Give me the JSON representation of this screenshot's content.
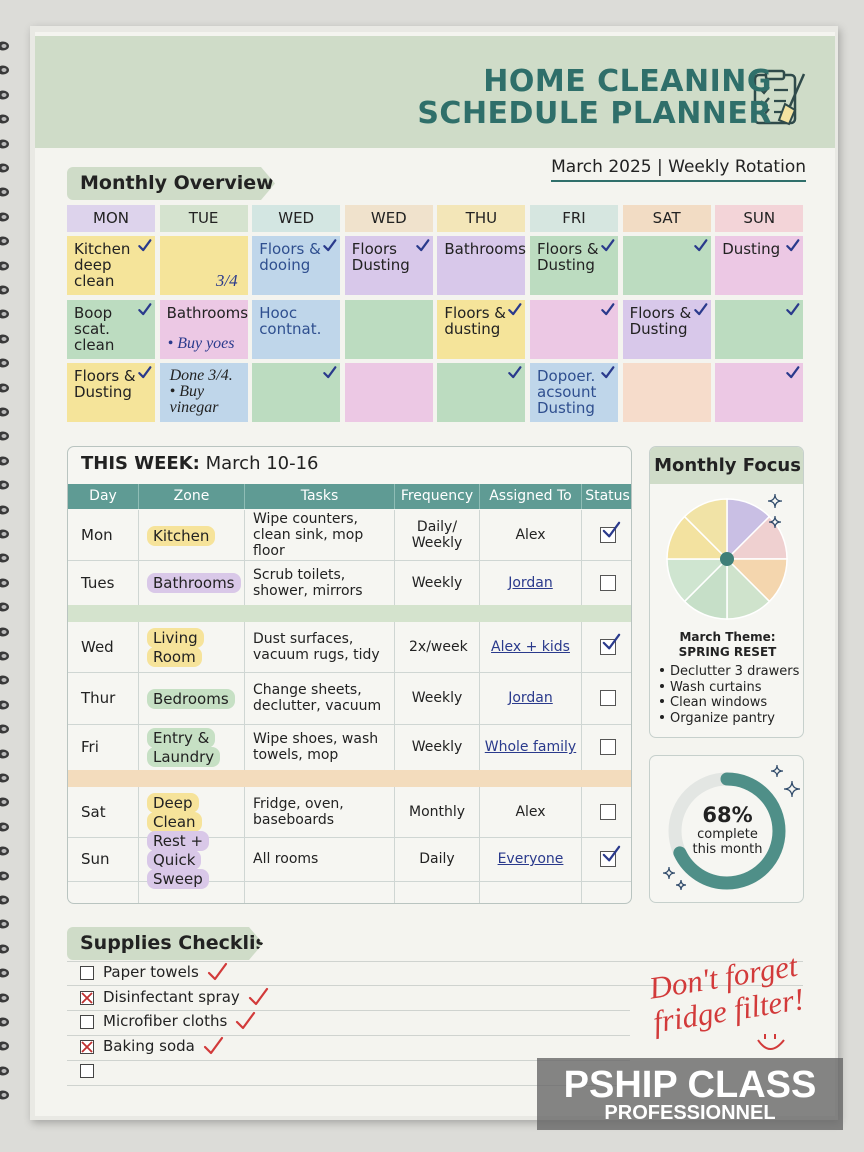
{
  "header": {
    "title": [
      "HOME CLEANING",
      "SCHEDULE PLANNER"
    ],
    "subtitle": "March 2025 | Weekly Rotation"
  },
  "monthly_overview": {
    "title": "Monthly Overview",
    "days": [
      {
        "label": "MON",
        "color": "#ddd3ec"
      },
      {
        "label": "TUE",
        "color": "#d5e3cf"
      },
      {
        "label": "WED",
        "color": "#d3e6e2"
      },
      {
        "label": "WED",
        "color": "#f0e2cc"
      },
      {
        "label": "THU",
        "color": "#f3e6b8"
      },
      {
        "label": "FRI",
        "color": "#d6e6e0"
      },
      {
        "label": "SAT",
        "color": "#f2dcc4"
      },
      {
        "label": "SUN",
        "color": "#f3d4d8"
      }
    ],
    "rows": [
      [
        {
          "text": "Kitchen deep clean",
          "color": "#f5e49a",
          "check": true
        },
        {
          "note": "3/4",
          "color": "#f5e49a",
          "check": false
        },
        {
          "text": "Floors & dooing",
          "color": "#bfd6ea",
          "check": true,
          "ink": "#2f4f8f"
        },
        {
          "text": "Floors Dusting",
          "color": "#d8c8ea",
          "check": true
        },
        {
          "text": "Bathrooms",
          "color": "#d8c8ea",
          "check": false
        },
        {
          "text": "Floors & Dusting",
          "color": "#bcdcc0",
          "check": true
        },
        {
          "color": "#bcdcc0",
          "check": true
        },
        {
          "text": "Dusting",
          "color": "#ecc8e4",
          "check": true
        }
      ],
      [
        {
          "text": "Boop scat. clean",
          "color": "#bcdcc0",
          "check": true
        },
        {
          "text": "Bathrooms",
          "note": "• Buy yoes",
          "color": "#ecc8e4",
          "check": false
        },
        {
          "text": "Hooc contnat.",
          "color": "#bfd6ea",
          "check": false,
          "ink": "#2f4f8f"
        },
        {
          "color": "#bcdcc0",
          "check": false
        },
        {
          "text": "Floors & dusting",
          "color": "#f5e49a",
          "check": true
        },
        {
          "color": "#ecc8e4",
          "check": true
        },
        {
          "text": "Floors & Dusting",
          "color": "#d8c8ea",
          "check": true
        },
        {
          "color": "#bcdcc0",
          "check": true
        }
      ],
      [
        {
          "text": "Floors & Dusting",
          "color": "#f5e49a",
          "check": true
        },
        {
          "text": "Done 3/4. • Buy vinegar",
          "hand": true,
          "color": "#bfd6ea",
          "check": false
        },
        {
          "color": "#bcdcc0",
          "check": true
        },
        {
          "color": "#ecc8e4",
          "check": false
        },
        {
          "color": "#bcdcc0",
          "check": true
        },
        {
          "text": "Dopoer. acsount Dusting",
          "color": "#bfd6ea",
          "check": true,
          "ink": "#2f4f8f"
        },
        {
          "color": "#f6dccb",
          "check": false
        },
        {
          "color": "#ecc8e4",
          "check": true
        }
      ]
    ]
  },
  "this_week": {
    "title": "THIS WEEK:",
    "dates": "March 10-16",
    "columns": [
      "Day",
      "Zone",
      "Tasks",
      "Frequency",
      "Assigned To",
      "Status"
    ],
    "rows": [
      {
        "day": "Mon",
        "zone": "Kitchen",
        "zone_color": "#f6e39a",
        "tasks": "Wipe counters, clean sink, mop floor",
        "frequency": "Daily/ Weekly",
        "assigned": "Alex",
        "link": false,
        "done": true
      },
      {
        "day": "Tues",
        "zone": "Bathrooms",
        "zone_color": "#d9c8e8",
        "tasks": "Scrub toilets, shower, mirrors",
        "frequency": "Weekly",
        "assigned": "Jordan",
        "link": true,
        "done": false
      },
      {
        "band": "#d4e3cd"
      },
      {
        "day": "Wed",
        "zone": "Living Room",
        "zone_color": "#f6e39a",
        "tasks": "Dust surfaces, vacuum rugs, tidy",
        "frequency": "2x/week",
        "assigned": "Alex + kids",
        "link": true,
        "done": true
      },
      {
        "day": "Thur",
        "zone": "Bedrooms",
        "zone_color": "#c6e0c4",
        "tasks": "Change sheets, declutter, vacuum",
        "frequency": "Weekly",
        "assigned": "Jordan",
        "link": true,
        "done": false
      },
      {
        "day": "Fri",
        "zone": "Entry & Laundry",
        "zone_color": "#c6e0c4",
        "tasks": "Wipe shoes, wash towels, mop",
        "frequency": "Weekly",
        "assigned": "Whole family",
        "link": true,
        "done": false
      },
      {
        "band": "#f3dcbd"
      },
      {
        "day": "Sat",
        "zone": "Deep Clean",
        "zone_color": "#f6e39a",
        "tasks": "Fridge, oven, baseboards",
        "frequency": "Monthly",
        "assigned": "Alex",
        "link": false,
        "done": false
      },
      {
        "day": "Sun",
        "zone": "Rest + Quick Sweep",
        "zone_color": "#d9c8e8",
        "tasks": "All rooms",
        "frequency": "Daily",
        "assigned": "Everyone",
        "link": true,
        "done": true
      }
    ]
  },
  "monthly_focus": {
    "title": "Monthly Focus",
    "slice_colors": [
      "#c9bfe4",
      "#efd0d0",
      "#f4d6ae",
      "#cfe3cc",
      "#c6dfc8",
      "#cfe5d0",
      "#f3e2a0",
      "#f1e3a6"
    ],
    "theme_label": "March Theme:",
    "theme": "SPRING RESET",
    "items": [
      "Declutter 3 drawers",
      "Wash curtains",
      "Clean windows",
      "Organize pantry"
    ]
  },
  "progress": {
    "value": 68,
    "value_label": "68%",
    "lim": [
      0,
      100
    ],
    "caption": [
      "complete",
      "this month"
    ],
    "color": "#4f8f88"
  },
  "supplies": {
    "title": "Supplies Checklist",
    "items": [
      {
        "text": "Paper towels",
        "crossed": false,
        "ticked": true
      },
      {
        "text": "Disinfectant spray",
        "crossed": true,
        "ticked": true
      },
      {
        "text": "Microfiber cloths",
        "crossed": false,
        "ticked": true
      },
      {
        "text": "Baking soda",
        "crossed": true,
        "ticked": true
      },
      {
        "crossed": false,
        "ticked": false
      }
    ]
  },
  "note": [
    "Don't forget",
    "fridge filter!"
  ],
  "watermark": [
    "PSHIP CLASS",
    "PROFESSIONNEL"
  ]
}
